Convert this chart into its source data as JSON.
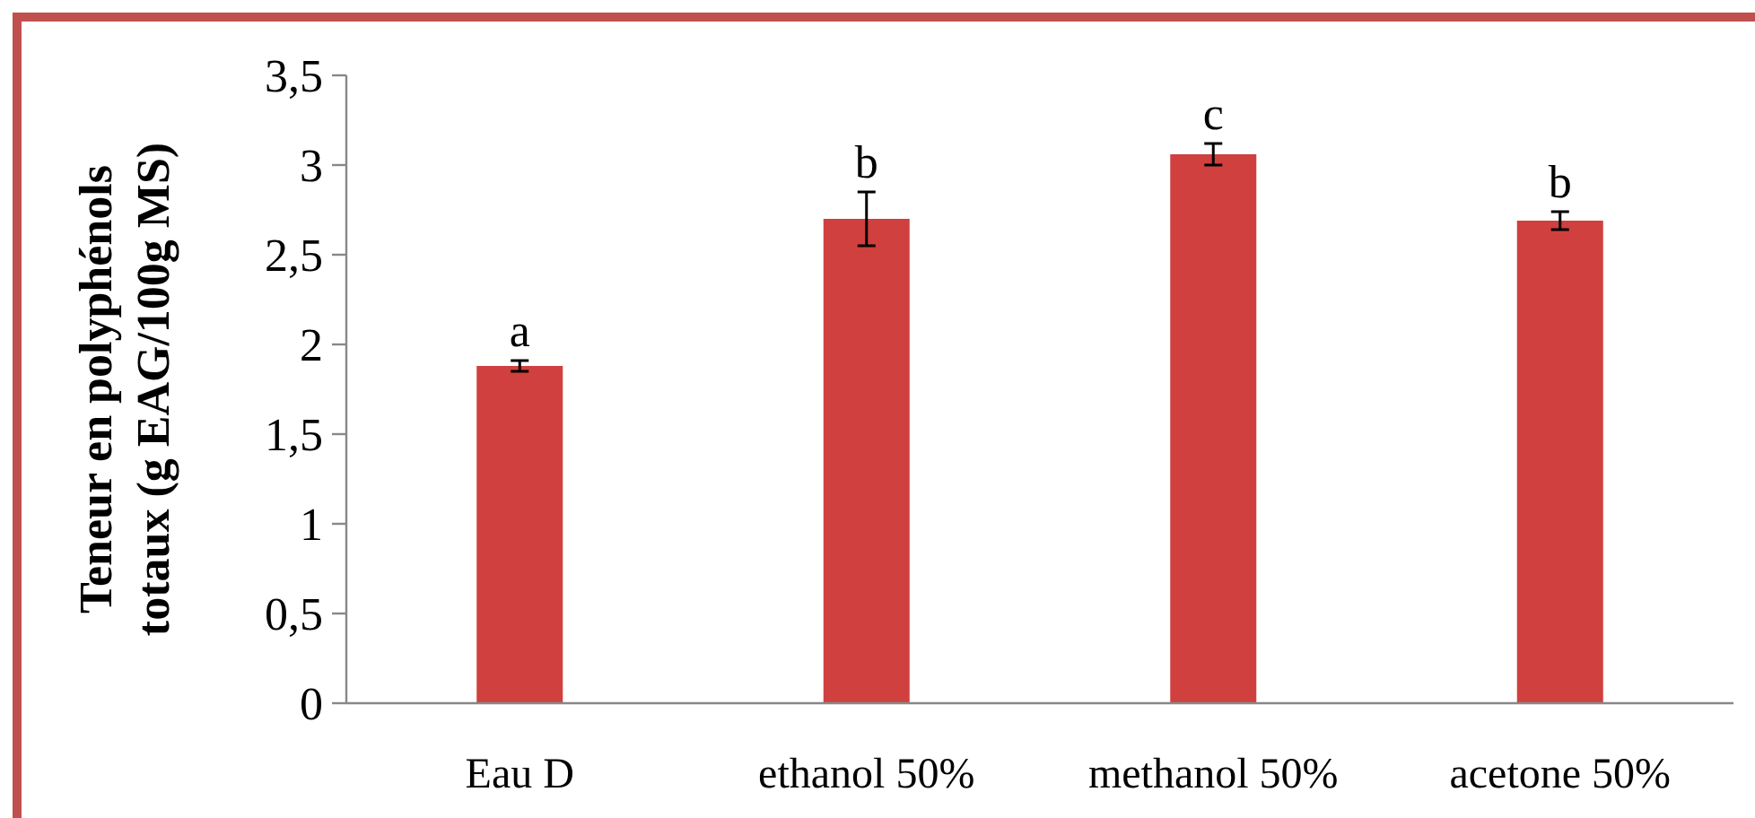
{
  "chart_data": {
    "type": "bar",
    "ylabel": "Teneur en polyphénols\ntotaux (g EAG/100g MS)",
    "categories": [
      "Eau D",
      "ethanol 50%",
      "methanol 50%",
      "acetone 50%"
    ],
    "values": [
      1.88,
      2.7,
      3.06,
      2.69
    ],
    "errors": [
      0.03,
      0.15,
      0.06,
      0.05
    ],
    "color": "#d0403e",
    "ylim": [
      0,
      3.5
    ],
    "yticks": [
      {
        "value": 0,
        "label": "0"
      },
      {
        "value": 0.5,
        "label": "0,5"
      },
      {
        "value": 1,
        "label": "1"
      },
      {
        "value": 1.5,
        "label": "1,5"
      },
      {
        "value": 2,
        "label": "2"
      },
      {
        "value": 2.5,
        "label": "2,5"
      },
      {
        "value": 3,
        "label": "3"
      },
      {
        "value": 3.5,
        "label": "3,5"
      }
    ],
    "annotations": [
      {
        "text": "a",
        "x": "Eau D",
        "y": 1.91
      },
      {
        "text": "b",
        "x": "ethanol 50%",
        "y": 2.85
      },
      {
        "text": "c",
        "x": "methanol 50%",
        "y": 3.12
      },
      {
        "text": "b",
        "x": "acetone 50%",
        "y": 2.74
      }
    ],
    "grid": false
  }
}
